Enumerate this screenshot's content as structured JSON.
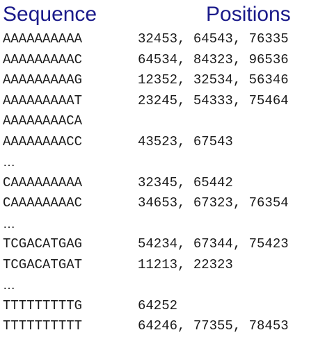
{
  "header": {
    "sequence_label": "Sequence",
    "positions_label": "Positions"
  },
  "rows": [
    {
      "sequence": "AAAAAAAAAA",
      "positions": "32453, 64543, 76335"
    },
    {
      "sequence": "AAAAAAAAAC",
      "positions": "64534, 84323, 96536"
    },
    {
      "sequence": "AAAAAAAAAG",
      "positions": "12352, 32534, 56346"
    },
    {
      "sequence": "AAAAAAAAAT",
      "positions": "23245, 54333, 75464"
    },
    {
      "sequence": "AAAAAAAACA",
      "positions": ""
    },
    {
      "sequence": "AAAAAAAACC",
      "positions": "43523, 67543"
    },
    {
      "ellipsis": "…"
    },
    {
      "sequence": "CAAAAAAAAA",
      "positions": "32345, 65442"
    },
    {
      "sequence": "CAAAAAAAAC",
      "positions": "34653, 67323, 76354"
    },
    {
      "ellipsis": "…"
    },
    {
      "sequence": "TCGACATGAG",
      "positions": "54234, 67344, 75423"
    },
    {
      "sequence": "TCGACATGAT",
      "positions": "11213, 22323"
    },
    {
      "ellipsis": "…"
    },
    {
      "sequence": "TTTTTTTTTG",
      "positions": "64252"
    },
    {
      "sequence": "TTTTTTTTTT",
      "positions": "64246, 77355, 78453"
    }
  ]
}
